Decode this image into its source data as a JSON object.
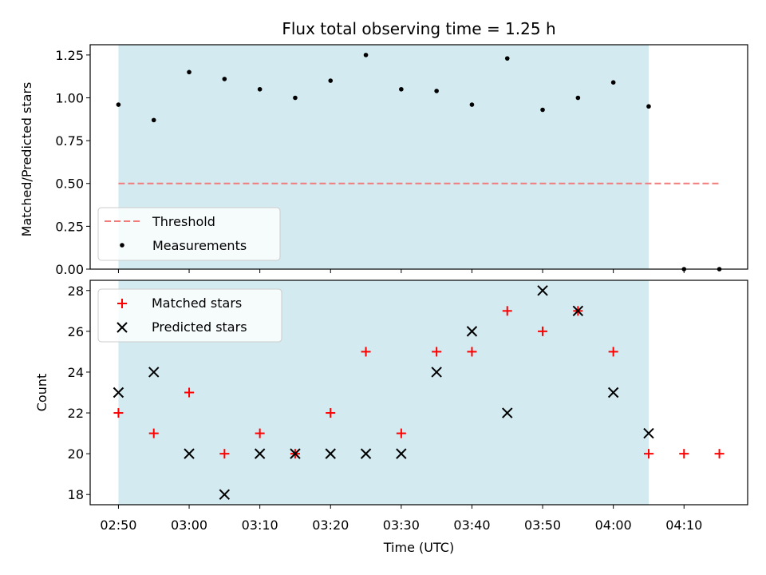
{
  "chart_data": [
    {
      "type": "scatter",
      "title": "Flux total observing time = 1.25 h",
      "ylabel": "Matched/Predicted stars",
      "xlabel": "",
      "ylim": [
        0,
        1.31
      ],
      "yticks": [
        0,
        0.25,
        0.5,
        0.75,
        1.0,
        1.25
      ],
      "ytick_labels": [
        "0.00",
        "0.25",
        "0.50",
        "0.75",
        "1.00",
        "1.25"
      ],
      "shaded_interval": [
        "02:50",
        "04:05"
      ],
      "shade_color": "#d3eaf0",
      "legend_position": "lower-left",
      "legend": [
        "Threshold",
        "Measurements"
      ],
      "threshold": {
        "name": "Threshold",
        "x": [
          "02:50",
          "04:15"
        ],
        "value": 0.5,
        "style": "dashed",
        "color": "#f37b7b"
      },
      "series": [
        {
          "name": "Measurements",
          "color": "#000000",
          "x": [
            "02:50",
            "02:55",
            "03:00",
            "03:05",
            "03:10",
            "03:15",
            "03:20",
            "03:25",
            "03:30",
            "03:35",
            "03:40",
            "03:45",
            "03:50",
            "03:55",
            "04:00",
            "04:05",
            "04:10",
            "04:15"
          ],
          "y": [
            0.96,
            0.87,
            1.15,
            1.11,
            1.05,
            1.0,
            1.1,
            1.25,
            1.05,
            1.04,
            0.96,
            1.23,
            0.93,
            1.0,
            1.09,
            0.95,
            0.0,
            0.0
          ]
        }
      ]
    },
    {
      "type": "scatter",
      "title": "",
      "xlabel": "Time (UTC)",
      "ylabel": "Count",
      "ylim": [
        17.5,
        28.5
      ],
      "yticks": [
        18,
        20,
        22,
        24,
        26,
        28
      ],
      "ytick_labels": [
        "18",
        "20",
        "22",
        "24",
        "26",
        "28"
      ],
      "xlim": [
        "02:46",
        "04:19"
      ],
      "xticks": [
        "02:50",
        "03:00",
        "03:10",
        "03:20",
        "03:30",
        "03:40",
        "03:50",
        "04:00",
        "04:10"
      ],
      "shaded_interval": [
        "02:50",
        "04:05"
      ],
      "shade_color": "#d3eaf0",
      "legend_position": "upper-left",
      "legend": [
        "Matched stars",
        "Predicted stars"
      ],
      "series": [
        {
          "name": "Matched stars",
          "marker": "plus",
          "color": "#ff0000",
          "x": [
            "02:50",
            "02:55",
            "03:00",
            "03:05",
            "03:10",
            "03:15",
            "03:20",
            "03:25",
            "03:30",
            "03:35",
            "03:40",
            "03:45",
            "03:50",
            "03:55",
            "04:00",
            "04:05",
            "04:10",
            "04:15"
          ],
          "y": [
            22,
            21,
            23,
            20,
            21,
            20,
            22,
            25,
            21,
            25,
            25,
            27,
            26,
            27,
            25,
            20,
            20,
            20
          ]
        },
        {
          "name": "Predicted stars",
          "marker": "x",
          "color": "#000000",
          "x": [
            "02:50",
            "02:55",
            "03:00",
            "03:05",
            "03:10",
            "03:15",
            "03:20",
            "03:25",
            "03:30",
            "03:35",
            "03:40",
            "03:45",
            "03:50",
            "03:55",
            "04:00",
            "04:05"
          ],
          "y": [
            23,
            24,
            20,
            18,
            20,
            20,
            20,
            20,
            20,
            24,
            26,
            22,
            28,
            27,
            23,
            21
          ]
        }
      ]
    }
  ]
}
